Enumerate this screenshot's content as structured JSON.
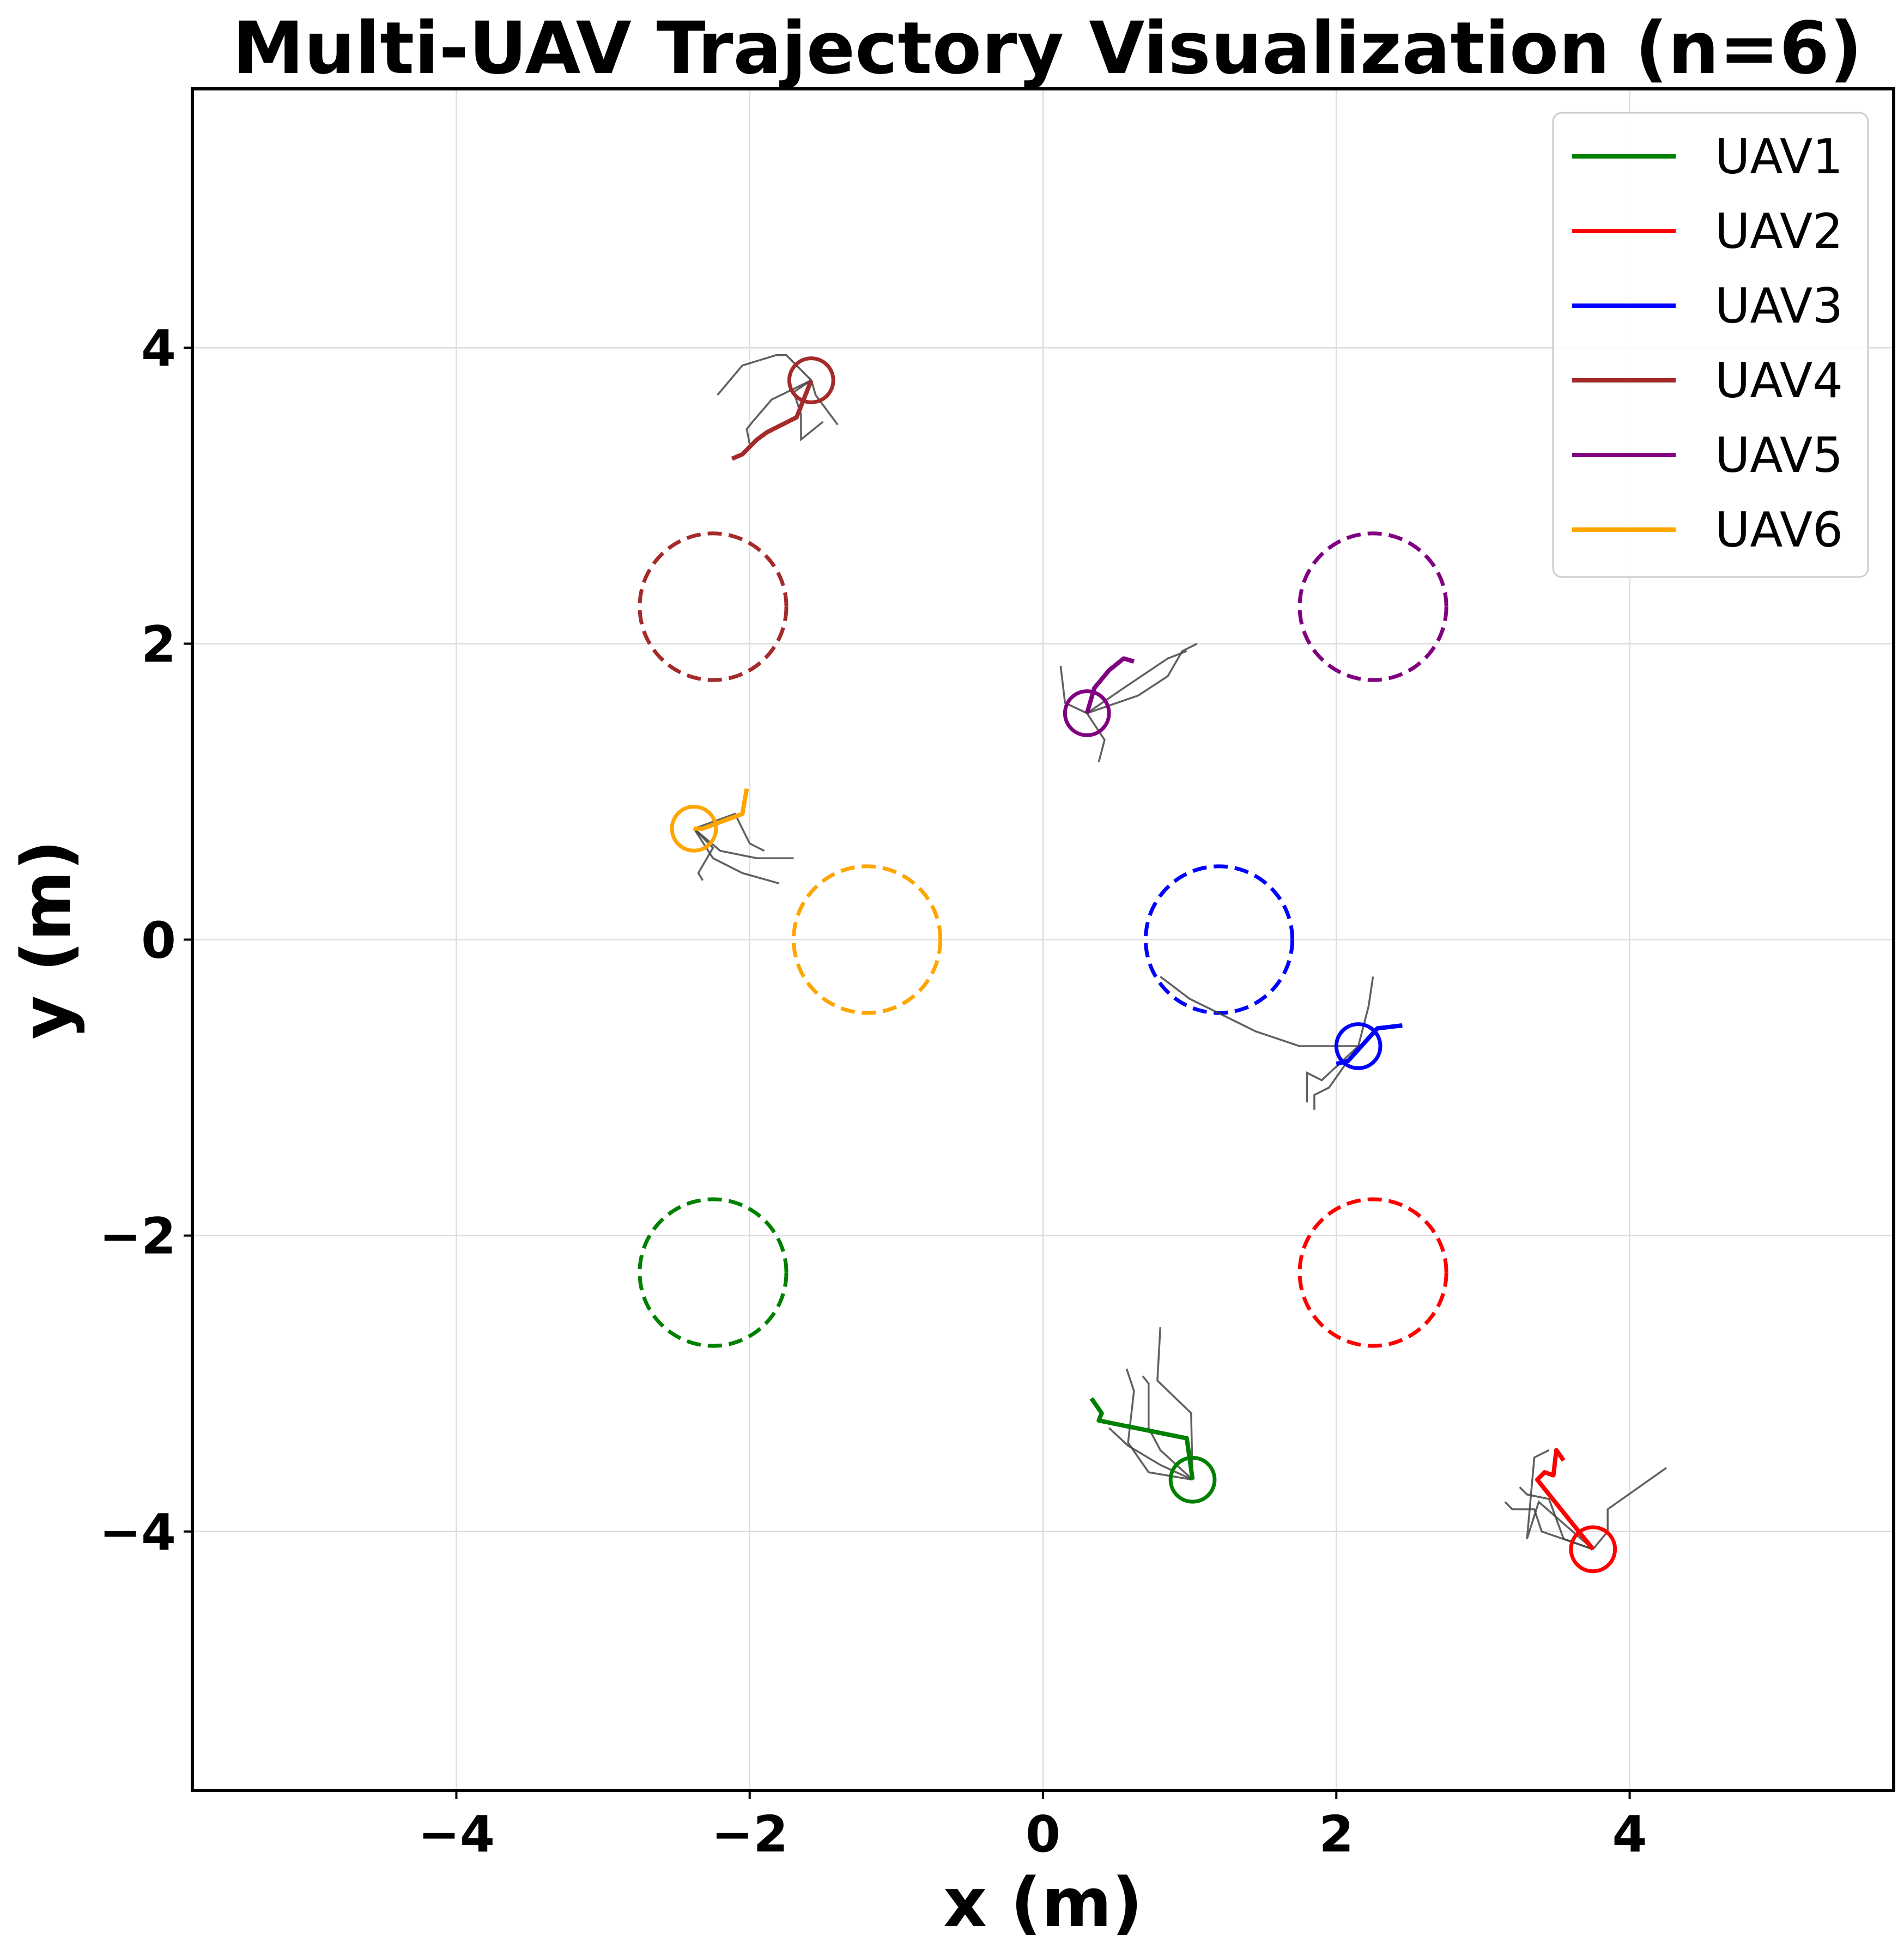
{
  "chart_data": {
    "type": "line",
    "title": "Multi-UAV Trajectory Visualization (n=6)",
    "xlabel": "x (m)",
    "ylabel": "y (m)",
    "xlim": [
      -5.8,
      5.8
    ],
    "ylim": [
      -5.75,
      5.75
    ],
    "xticks": [
      -4,
      -2,
      0,
      2,
      4
    ],
    "yticks": [
      -4,
      -2,
      0,
      2,
      4
    ],
    "grid": true,
    "legend_position": "top-right",
    "goal_radius": 0.5,
    "current_radius": 0.15,
    "history_color": "#444444",
    "series": [
      {
        "name": "UAV1",
        "color": "#008000",
        "goal": [
          -2.25,
          -2.25
        ],
        "current": [
          1.02,
          -3.65
        ],
        "path": [
          [
            0.33,
            -3.1
          ],
          [
            0.4,
            -3.2
          ],
          [
            0.38,
            -3.25
          ],
          [
            0.98,
            -3.37
          ],
          [
            1.02,
            -3.65
          ]
        ],
        "history": [
          [
            [
              1.02,
              -3.65
            ],
            [
              0.8,
              -3.55
            ],
            [
              0.58,
              -3.42
            ],
            [
              0.45,
              -3.3
            ]
          ],
          [
            [
              1.02,
              -3.65
            ],
            [
              1.01,
              -3.2
            ],
            [
              0.78,
              -2.98
            ],
            [
              0.8,
              -2.62
            ]
          ],
          [
            [
              1.02,
              -3.65
            ],
            [
              0.72,
              -3.6
            ],
            [
              0.58,
              -3.4
            ],
            [
              0.62,
              -3.05
            ],
            [
              0.57,
              -2.9
            ]
          ],
          [
            [
              1.02,
              -3.65
            ],
            [
              0.8,
              -3.45
            ],
            [
              0.72,
              -3.3
            ],
            [
              0.72,
              -3.0
            ],
            [
              0.68,
              -2.95
            ]
          ]
        ]
      },
      {
        "name": "UAV2",
        "color": "#ff0000",
        "goal": [
          2.25,
          -2.25
        ],
        "current": [
          3.75,
          -4.12
        ],
        "path": [
          [
            3.55,
            -3.52
          ],
          [
            3.5,
            -3.45
          ],
          [
            3.48,
            -3.62
          ],
          [
            3.42,
            -3.6
          ],
          [
            3.37,
            -3.65
          ],
          [
            3.75,
            -4.12
          ]
        ],
        "history": [
          [
            [
              3.75,
              -4.12
            ],
            [
              3.85,
              -4.0
            ],
            [
              3.85,
              -3.85
            ],
            [
              4.25,
              -3.57
            ]
          ],
          [
            [
              3.75,
              -4.12
            ],
            [
              3.4,
              -4.0
            ],
            [
              3.35,
              -3.85
            ],
            [
              3.2,
              -3.85
            ],
            [
              3.15,
              -3.8
            ]
          ],
          [
            [
              3.75,
              -4.12
            ],
            [
              3.55,
              -4.05
            ],
            [
              3.45,
              -3.78
            ],
            [
              3.3,
              -3.75
            ],
            [
              3.25,
              -3.7
            ]
          ],
          [
            [
              3.75,
              -4.12
            ],
            [
              3.38,
              -3.8
            ],
            [
              3.3,
              -4.05
            ],
            [
              3.35,
              -3.5
            ],
            [
              3.45,
              -3.45
            ]
          ]
        ]
      },
      {
        "name": "UAV3",
        "color": "#0000ff",
        "goal": [
          1.2,
          0.0
        ],
        "current": [
          2.15,
          -0.72
        ],
        "path": [
          [
            2.45,
            -0.58
          ],
          [
            2.28,
            -0.6
          ],
          [
            2.08,
            -0.82
          ],
          [
            2.0,
            -0.84
          ]
        ],
        "history": [
          [
            [
              2.15,
              -0.72
            ],
            [
              1.75,
              -0.72
            ],
            [
              1.45,
              -0.62
            ],
            [
              1.0,
              -0.4
            ],
            [
              0.8,
              -0.25
            ]
          ],
          [
            [
              2.15,
              -0.72
            ],
            [
              2.22,
              -0.45
            ],
            [
              2.25,
              -0.25
            ]
          ],
          [
            [
              2.15,
              -0.72
            ],
            [
              1.9,
              -0.95
            ],
            [
              1.8,
              -0.9
            ],
            [
              1.8,
              -1.1
            ]
          ],
          [
            [
              2.15,
              -0.72
            ],
            [
              1.95,
              -1.0
            ],
            [
              1.85,
              -1.05
            ],
            [
              1.85,
              -1.15
            ]
          ]
        ]
      },
      {
        "name": "UAV4",
        "color": "#a52a2a",
        "goal": [
          -2.25,
          2.25
        ],
        "current": [
          -1.58,
          3.78
        ],
        "path": [
          [
            -2.12,
            3.25
          ],
          [
            -2.05,
            3.28
          ],
          [
            -1.95,
            3.38
          ],
          [
            -1.88,
            3.43
          ],
          [
            -1.68,
            3.53
          ],
          [
            -1.58,
            3.78
          ]
        ],
        "history": [
          [
            [
              -1.58,
              3.78
            ],
            [
              -1.75,
              3.95
            ],
            [
              -1.82,
              3.95
            ],
            [
              -2.05,
              3.88
            ],
            [
              -2.22,
              3.68
            ]
          ],
          [
            [
              -1.58,
              3.78
            ],
            [
              -1.55,
              3.68
            ],
            [
              -1.4,
              3.48
            ]
          ],
          [
            [
              -1.58,
              3.78
            ],
            [
              -1.85,
              3.65
            ],
            [
              -1.98,
              3.5
            ],
            [
              -2.02,
              3.45
            ],
            [
              -2.0,
              3.35
            ]
          ],
          [
            [
              -1.58,
              3.78
            ],
            [
              -1.7,
              3.7
            ],
            [
              -1.65,
              3.55
            ],
            [
              -1.65,
              3.38
            ],
            [
              -1.5,
              3.5
            ]
          ]
        ]
      },
      {
        "name": "UAV5",
        "color": "#800080",
        "goal": [
          2.25,
          2.25
        ],
        "current": [
          0.3,
          1.53
        ],
        "path": [
          [
            0.62,
            1.88
          ],
          [
            0.55,
            1.9
          ],
          [
            0.45,
            1.82
          ],
          [
            0.35,
            1.7
          ],
          [
            0.3,
            1.53
          ]
        ],
        "history": [
          [
            [
              0.3,
              1.53
            ],
            [
              0.65,
              1.65
            ],
            [
              0.85,
              1.78
            ],
            [
              0.95,
              1.95
            ],
            [
              1.05,
              2.0
            ]
          ],
          [
            [
              0.3,
              1.53
            ],
            [
              0.15,
              1.6
            ],
            [
              0.12,
              1.85
            ]
          ],
          [
            [
              0.3,
              1.53
            ],
            [
              0.42,
              1.35
            ],
            [
              0.38,
              1.2
            ]
          ],
          [
            [
              0.3,
              1.53
            ],
            [
              0.55,
              1.7
            ],
            [
              0.85,
              1.9
            ],
            [
              0.98,
              1.95
            ]
          ]
        ]
      },
      {
        "name": "UAV6",
        "color": "#ffa500",
        "goal": [
          -1.2,
          0.0
        ],
        "current": [
          -2.38,
          0.75
        ],
        "path": [
          [
            -2.02,
            1.02
          ],
          [
            -2.05,
            0.85
          ],
          [
            -2.32,
            0.75
          ],
          [
            -2.38,
            0.75
          ]
        ],
        "history": [
          [
            [
              -2.38,
              0.75
            ],
            [
              -2.2,
              0.6
            ],
            [
              -1.95,
              0.55
            ],
            [
              -1.7,
              0.55
            ]
          ],
          [
            [
              -2.38,
              0.75
            ],
            [
              -2.25,
              0.55
            ],
            [
              -2.05,
              0.45
            ],
            [
              -1.8,
              0.38
            ]
          ],
          [
            [
              -2.38,
              0.75
            ],
            [
              -2.1,
              0.85
            ],
            [
              -2.0,
              0.65
            ],
            [
              -1.9,
              0.6
            ]
          ],
          [
            [
              -2.38,
              0.75
            ],
            [
              -2.25,
              0.62
            ],
            [
              -2.35,
              0.45
            ],
            [
              -2.32,
              0.4
            ]
          ]
        ]
      }
    ]
  }
}
